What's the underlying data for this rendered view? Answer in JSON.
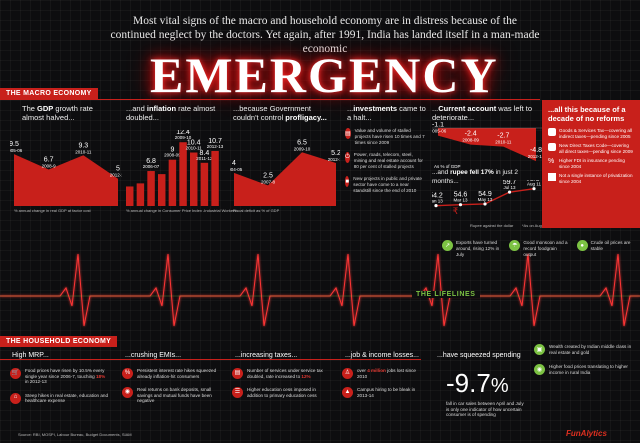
{
  "header": {
    "intro": "Most vital signs of the macro and household  economy are in distress because of the continued neglect by the doctors. Yet again, after 1991, India has landed itself in a man-made economic",
    "headline": "EMERGENCY"
  },
  "macro": {
    "section_label": "THE MACRO ECONOMY",
    "gdp": {
      "title_pre": "The ",
      "title_bold": "GDP",
      "title_post": " growth rate almost halved...",
      "footnote": "% annual change in real GDP at factor cost"
    },
    "inflation": {
      "title_pre": "...and ",
      "title_bold": "inflation",
      "title_post": " rate almost doubled...",
      "footnote": "% annual change in Consumer Price Index -Industrial Workers"
    },
    "deficit": {
      "title_pre": "...because Government couldn't control ",
      "title_bold": "profligacy...",
      "title_post": "",
      "footnote": "Fiscal deficit as % of GDP"
    },
    "investments": {
      "title_pre": "...",
      "title_bold": "investments",
      "title_post": " came to a halt...",
      "items": [
        {
          "icon": "document-icon",
          "text": "Value and volume of stalled projects have risen 10 times and 7 times since 2009"
        },
        {
          "icon": "power-icon",
          "text": "Power, roads, telecom, steel, mining and real estate account for 80 per cent of stalled projects"
        },
        {
          "icon": "bus-icon",
          "text": "New projects in public and private sector have come to a near standstill since the end of 2010"
        }
      ]
    },
    "current_account": {
      "title_pre": "...",
      "title_bold": "Current account",
      "title_post": " was left to deteriorate...",
      "footnote": "As % of GDP"
    },
    "rupee": {
      "title_pre": "...and ",
      "title_bold": "rupee fell 17%",
      "title_post": " in just 2 months...",
      "footnote_left": "Rupee against the dollar",
      "footnote_right": "*As on Aug 11"
    },
    "reforms": {
      "title": "...all this because of a decade of no reforms",
      "items": [
        {
          "icon": "tax-icon",
          "text": "Goods & Services Tax—covering all indirect taxes—pending since 2005"
        },
        {
          "icon": "tax-icon",
          "text": "New Direct Taxes Code—covering all direct taxes—pending since 2009"
        },
        {
          "icon": "percent-icon",
          "text": "Higher FDI in insurance pending since 2004"
        },
        {
          "icon": "factory-icon",
          "text": "Not a single instance of privatization since 2004"
        }
      ]
    }
  },
  "lifelines": {
    "label": "THE LIFELINES",
    "items": [
      {
        "icon": "chart-up-icon",
        "text": "Exports have turned around, rising 12% in July"
      },
      {
        "icon": "rain-icon",
        "text": "Good monsoon and a record foodgrain output"
      },
      {
        "icon": "oil-drop-icon",
        "text": "Crude oil prices are stable"
      }
    ]
  },
  "household": {
    "section_label": "THE HOUSEHOLD ECONOMY",
    "mrp": {
      "title": "High MRP...",
      "items": [
        {
          "icon": "cart-icon",
          "text_pre": "Food prices have risen by 10.5% every single year since 2006-7, touching ",
          "highlight": "18%",
          "text_post": " in 2012-13"
        },
        {
          "icon": "house-icon",
          "text_pre": "Steep hikes in real estate, education and healthcare expense",
          "highlight": "",
          "text_post": ""
        }
      ]
    },
    "emis": {
      "title": "...crushing EMIs...",
      "items": [
        {
          "icon": "percent-icon",
          "text": "Persistent interest rate hikes squeezed already inflation-hit consumers"
        },
        {
          "icon": "piggy-icon",
          "text": "Real returns on bank deposits, small savings and mutual funds have been negative"
        }
      ]
    },
    "taxes": {
      "title": "...increasing taxes...",
      "items": [
        {
          "icon": "bill-icon",
          "text_pre": "Number of services under service tax doubled, rate increased to ",
          "highlight": "12%",
          "text_post": ""
        },
        {
          "icon": "books-icon",
          "text_pre": "Higher education cess imposed in addition to primary education cess",
          "highlight": "",
          "text_post": ""
        }
      ]
    },
    "jobs": {
      "title": "...job & income losses...",
      "items": [
        {
          "icon": "worker-icon",
          "text_pre": "over ",
          "highlight": "4 million",
          "text_post": " jobs lost since 2010"
        },
        {
          "icon": "graduate-icon",
          "text_pre": "Campus hiring to be bleak in 2013-14",
          "highlight": "",
          "text_post": ""
        }
      ]
    },
    "spending": {
      "title": "...have squeezed spending",
      "figure": "-9.7",
      "figure_unit": "%",
      "text": "fall in car sales between April and July is only one indicator of how uncertain consumer is of spending"
    },
    "right_items": [
      {
        "icon": "car-icon",
        "text": "Wealth created by Indian middle class in real estate and gold"
      },
      {
        "icon": "sack-icon",
        "text": "Higher food prices translating to higher income in rural India"
      }
    ]
  },
  "footer": {
    "source": "Source: RBI, MOSPI, Labour Bureau, Budget Documents, SIAM",
    "brand": "FunAlytics"
  },
  "colors": {
    "accent": "#c8201b",
    "background": "#0d0d0f",
    "green": "#7cc243",
    "glow": "#ff3030"
  },
  "chart_data": [
    {
      "type": "area",
      "title": "The GDP growth rate almost halved...",
      "x": [
        "2005-06",
        "2008-9",
        "2010-11",
        "2012-13"
      ],
      "values": [
        9.5,
        6.7,
        9.3,
        5
      ],
      "labels": [
        "9.5",
        "6.7",
        "9.3",
        "5"
      ],
      "ylabel": "% annual change in real GDP at factor cost"
    },
    {
      "type": "bar",
      "title": "...and inflation rate almost doubled...",
      "categories": [
        "2004-05",
        "2005-06",
        "2006-07",
        "2007-08",
        "2008-09",
        "2009-10",
        "2010-11",
        "2011-12",
        "2012-13"
      ],
      "values": [
        3.8,
        4.4,
        6.8,
        6.2,
        9,
        12.4,
        10.4,
        8.4,
        10.7
      ],
      "labels": [
        "",
        "",
        "6.8",
        "",
        "9",
        "12.4",
        "10.4",
        "8.4",
        "10.7"
      ],
      "ylabel": "% annual change in Consumer Price Index -Industrial Workers"
    },
    {
      "type": "area",
      "title": "...because Government couldn't control profligacy...",
      "x": [
        "2004-05",
        "2007-8",
        "2009-10",
        "2012-13"
      ],
      "values": [
        4,
        2.5,
        6.5,
        5.2
      ],
      "labels": [
        "4",
        "2.5",
        "6.5",
        "5.2"
      ],
      "ylabel": "Fiscal deficit as % of GDP"
    },
    {
      "type": "area",
      "title": "...Current account was left to deteriorate...",
      "x": [
        "2005-06",
        "2008-09",
        "2010-11",
        "2012-13"
      ],
      "values": [
        -1.1,
        -2.4,
        -2.7,
        -4.8
      ],
      "labels": [
        "-1.1",
        "-2.4",
        "-2.7",
        "-4.8"
      ],
      "ylabel": "As % of GDP"
    },
    {
      "type": "line",
      "title": "...and rupee fell 17% in just 2 months...",
      "x": [
        "Jan 13",
        "Mar 13",
        "May 13",
        "Jul 13",
        "Aug 11"
      ],
      "values": [
        54.2,
        54.6,
        54.9,
        59.7,
        61.1
      ],
      "labels": [
        "54.2",
        "54.6",
        "54.9",
        "59.7",
        "61.1*"
      ],
      "ylabel": "Rupee against the dollar"
    }
  ]
}
